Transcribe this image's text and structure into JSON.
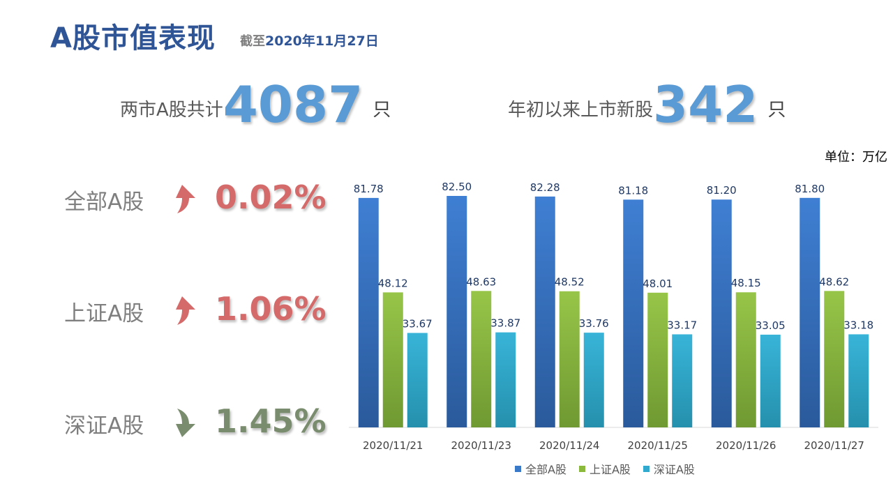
{
  "header": {
    "title": "A股市值表现",
    "subtitle_prefix": "截至",
    "subtitle_date": "2020年11月27日"
  },
  "stats": {
    "total": {
      "label": "两市A股共计",
      "value": "4087",
      "unit": "只"
    },
    "new": {
      "label": "年初以来上市新股",
      "value": "342",
      "unit": "只"
    }
  },
  "changes": [
    {
      "label": "全部A股",
      "value": "0.02%",
      "direction": "up",
      "color": "#d46a6a",
      "icon": "up-arrow-icon"
    },
    {
      "label": "上证A股",
      "value": "1.06%",
      "direction": "up",
      "color": "#d46a6a",
      "icon": "up-arrow-icon"
    },
    {
      "label": "深证A股",
      "value": "1.45%",
      "direction": "down",
      "color": "#7a8c6e",
      "icon": "down-arrow-icon"
    }
  ],
  "chart_data": {
    "type": "bar",
    "units_label": "单位：万亿",
    "categories": [
      "2020/11/21",
      "2020/11/23",
      "2020/11/24",
      "2020/11/25",
      "2020/11/26",
      "2020/11/27"
    ],
    "series": [
      {
        "name": "全部A股",
        "values": [
          81.78,
          82.5,
          82.28,
          81.18,
          81.2,
          81.8
        ],
        "color": "#3a78c8"
      },
      {
        "name": "上证A股",
        "values": [
          48.12,
          48.63,
          48.52,
          48.01,
          48.15,
          48.62
        ],
        "color": "#8ab93e"
      },
      {
        "name": "深证A股",
        "values": [
          33.67,
          33.87,
          33.76,
          33.17,
          33.05,
          33.18
        ],
        "color": "#31a9cf"
      }
    ],
    "ylim": [
      0,
      82.5
    ],
    "grid": false,
    "legend_position": "bottom"
  }
}
